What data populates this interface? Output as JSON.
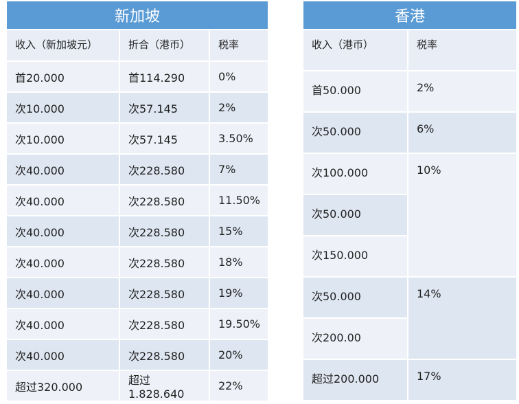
{
  "singapore": {
    "title": "新加坡",
    "headers": [
      "收入（新加坡元）",
      "折合（港币）",
      "税率"
    ],
    "rows": [
      [
        "首20.000",
        "首114.290",
        "0%"
      ],
      [
        "次10.000",
        "次57.145",
        "2%"
      ],
      [
        "次10.000",
        "次57.145",
        "3.50%"
      ],
      [
        "次40.000",
        "次228.580",
        "7%"
      ],
      [
        "次40.000",
        "次228.580",
        "11.50%"
      ],
      [
        "次40.000",
        "次228.580",
        "15%"
      ],
      [
        "次40.000",
        "次228.580",
        "18%"
      ],
      [
        "次40.000",
        "次228.580",
        "19%"
      ],
      [
        "次40.000",
        "次228.580",
        "19.50%"
      ],
      [
        "次40.000",
        "次228.580",
        "20%"
      ],
      [
        "超过320.000",
        "超过1.828.640",
        "22%"
      ]
    ]
  },
  "hongkong": {
    "title": "香港",
    "headers": [
      "收入（港币）",
      "税率"
    ],
    "income": [
      "首50.000",
      "次50.000",
      "次100.000",
      "次50.000",
      "次150.000",
      "次50.000",
      "次200.00",
      "超过200.000"
    ],
    "rates": [
      "2%",
      "6%",
      "10%",
      "14%",
      "17%"
    ]
  }
}
